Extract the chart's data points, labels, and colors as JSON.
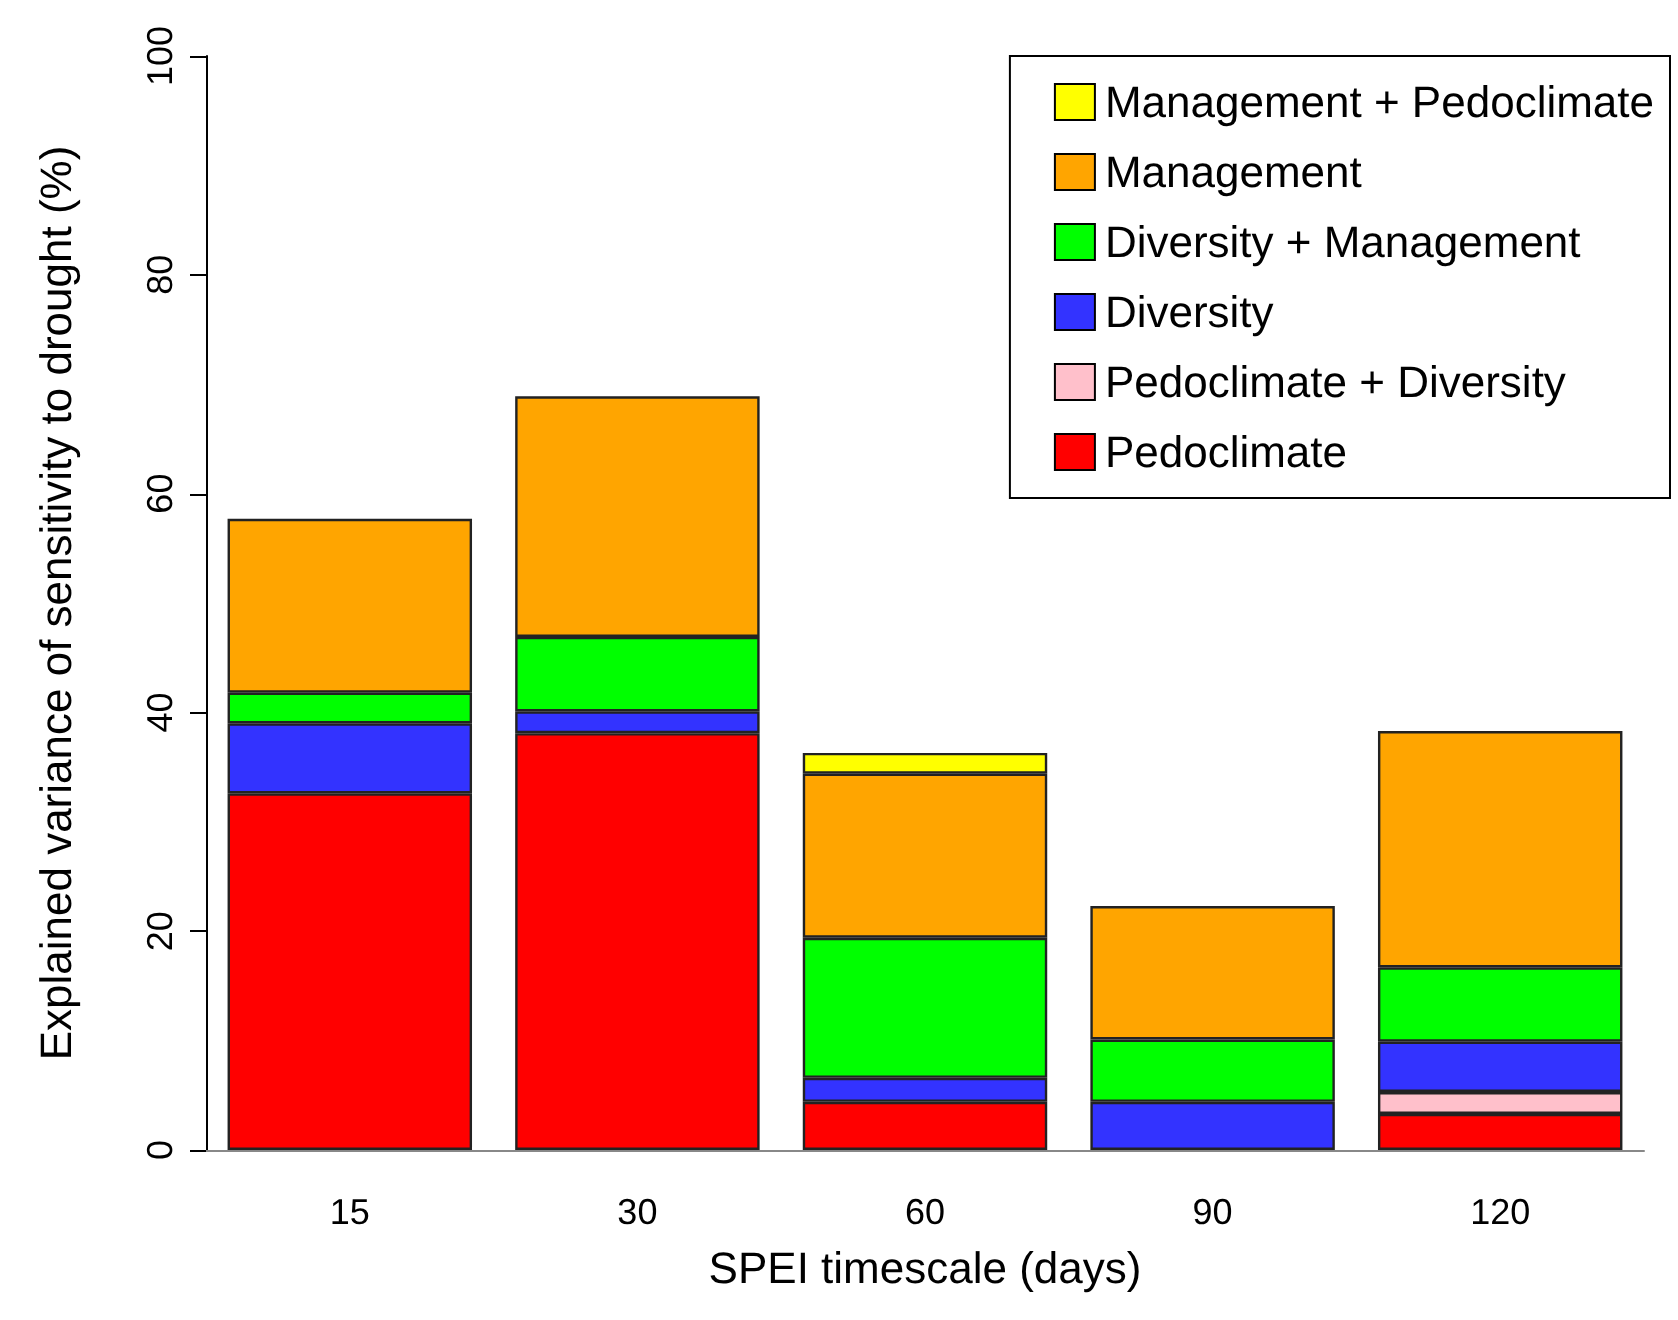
{
  "chart_data": {
    "type": "bar",
    "stacked": true,
    "xlabel": "SPEI timescale (days)",
    "ylabel": "Explained variance of sensitivity to drought (%)",
    "categories": [
      "15",
      "30",
      "60",
      "90",
      "120"
    ],
    "series": [
      {
        "name": "Pedoclimate",
        "color": "#ff0000",
        "values": [
          32.6,
          38.1,
          4.4,
          0,
          3.3
        ]
      },
      {
        "name": "Pedoclimate + Diversity",
        "color": "#ffc0cb",
        "values": [
          0,
          0,
          0,
          0,
          2.0
        ]
      },
      {
        "name": "Diversity",
        "color": "#3333ff",
        "values": [
          6.4,
          2.0,
          2.2,
          4.4,
          4.6
        ]
      },
      {
        "name": "Diversity + Management",
        "color": "#00ff00",
        "values": [
          2.8,
          6.8,
          12.8,
          5.7,
          6.8
        ]
      },
      {
        "name": "Management",
        "color": "#ffa500",
        "values": [
          15.9,
          22.0,
          15.0,
          12.2,
          21.6
        ]
      },
      {
        "name": "Management + Pedoclimate",
        "color": "#ffff00",
        "values": [
          0,
          0,
          1.9,
          0,
          0
        ]
      }
    ],
    "ylim": [
      0,
      100
    ],
    "yticks": [
      0,
      20,
      40,
      60,
      80,
      100
    ],
    "grid": false,
    "legend": "top right"
  }
}
